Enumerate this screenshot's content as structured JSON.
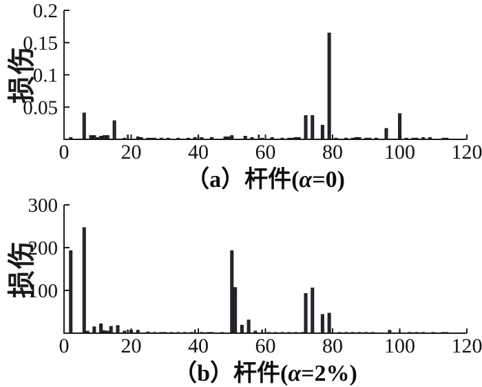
{
  "figure": {
    "background": "#ffffff",
    "text_color": "#111111"
  },
  "chart_data": [
    {
      "id": "a",
      "type": "bar",
      "caption_text": "（a）杆件(α=0)",
      "caption": {
        "pre": "（a）杆件(",
        "alpha": "α",
        "post": "=0)"
      },
      "ylabel": "损伤",
      "xlabel": "",
      "xlim": [
        0,
        120
      ],
      "ylim": [
        0,
        0.2
      ],
      "grid": false,
      "legend": "none",
      "bar_color": "#26262d",
      "bar_stroke": "#101014",
      "axis_color": "#1a1a1a",
      "xticks": [
        {
          "v": 0,
          "label": "0"
        },
        {
          "v": 20,
          "label": "20"
        },
        {
          "v": 40,
          "label": "40"
        },
        {
          "v": 60,
          "label": "60"
        },
        {
          "v": 80,
          "label": "80"
        },
        {
          "v": 100,
          "label": "100"
        },
        {
          "v": 120,
          "label": "120"
        }
      ],
      "yticks": [
        {
          "v": 0.05,
          "label": "0.05"
        },
        {
          "v": 0.1,
          "label": "0.1"
        },
        {
          "v": 0.15,
          "label": "0.15"
        },
        {
          "v": 0.2,
          "label": "0.2"
        }
      ],
      "bars": [
        [
          2,
          0.003
        ],
        [
          6,
          0.041
        ],
        [
          8,
          0.006
        ],
        [
          9,
          0.006
        ],
        [
          10,
          0.003
        ],
        [
          11,
          0.005
        ],
        [
          12,
          0.006
        ],
        [
          13,
          0.006
        ],
        [
          15,
          0.029
        ],
        [
          18,
          0.002
        ],
        [
          19,
          0.007,
          1
        ],
        [
          22,
          0.004
        ],
        [
          23,
          0.003
        ],
        [
          25,
          0.002
        ],
        [
          26,
          0.002
        ],
        [
          27,
          0.002
        ],
        [
          29,
          0.002
        ],
        [
          31,
          0.002
        ],
        [
          34,
          0.002
        ],
        [
          37,
          0.002
        ],
        [
          39,
          0.003
        ],
        [
          40,
          0.005,
          1
        ],
        [
          41,
          0.003
        ],
        [
          44,
          0.003
        ],
        [
          48,
          0.004
        ],
        [
          49,
          0.004
        ],
        [
          50,
          0.006
        ],
        [
          54,
          0.005
        ],
        [
          56,
          0.003
        ],
        [
          58,
          0.007,
          1
        ],
        [
          59,
          0.002
        ],
        [
          62,
          0.003
        ],
        [
          65,
          0.002
        ],
        [
          67,
          0.002
        ],
        [
          68,
          0.002
        ],
        [
          69,
          0.003
        ],
        [
          70,
          0.003
        ],
        [
          72,
          0.037
        ],
        [
          74,
          0.037
        ],
        [
          77,
          0.022
        ],
        [
          79,
          0.165
        ],
        [
          81,
          0.002
        ],
        [
          84,
          0.002
        ],
        [
          86,
          0.002
        ],
        [
          87,
          0.003
        ],
        [
          88,
          0.003
        ],
        [
          90,
          0.002
        ],
        [
          91,
          0.002
        ],
        [
          93,
          0.002
        ],
        [
          96,
          0.017
        ],
        [
          100,
          0.04
        ],
        [
          102,
          0.002
        ],
        [
          104,
          0.002
        ],
        [
          105,
          0.002
        ],
        [
          107,
          0.003
        ],
        [
          109,
          0.003
        ],
        [
          113,
          0.002
        ],
        [
          114,
          0.002
        ]
      ]
    },
    {
      "id": "b",
      "type": "bar",
      "caption_text": "（b）杆件(α=2%)",
      "caption": {
        "pre": "（b）杆件(",
        "alpha": "α",
        "post": "=2%)"
      },
      "ylabel": "损伤",
      "xlabel": "",
      "xlim": [
        0,
        120
      ],
      "ylim": [
        0,
        300
      ],
      "grid": false,
      "legend": "none",
      "bar_color": "#26262d",
      "bar_stroke": "#101014",
      "axis_color": "#1a1a1a",
      "xticks": [
        {
          "v": 0,
          "label": "0"
        },
        {
          "v": 20,
          "label": "20"
        },
        {
          "v": 40,
          "label": "40"
        },
        {
          "v": 60,
          "label": "60"
        },
        {
          "v": 80,
          "label": "80"
        },
        {
          "v": 100,
          "label": "100"
        },
        {
          "v": 120,
          "label": "120"
        }
      ],
      "yticks": [
        {
          "v": 100,
          "label": "100"
        },
        {
          "v": 200,
          "label": "200"
        },
        {
          "v": 300,
          "label": "300"
        }
      ],
      "bars": [
        [
          2,
          193
        ],
        [
          6,
          247
        ],
        [
          7,
          5
        ],
        [
          9,
          15
        ],
        [
          11,
          22
        ],
        [
          12,
          6
        ],
        [
          13,
          5
        ],
        [
          14,
          16
        ],
        [
          16,
          18
        ],
        [
          18,
          5
        ],
        [
          19,
          8,
          1
        ],
        [
          20,
          7
        ],
        [
          22,
          7
        ],
        [
          25,
          3
        ],
        [
          27,
          2
        ],
        [
          29,
          2
        ],
        [
          30,
          2
        ],
        [
          32,
          2
        ],
        [
          34,
          2
        ],
        [
          36,
          2
        ],
        [
          38,
          2
        ],
        [
          39,
          8,
          1
        ],
        [
          41,
          2
        ],
        [
          43,
          2
        ],
        [
          44,
          2
        ],
        [
          47,
          2
        ],
        [
          50,
          193
        ],
        [
          51,
          107
        ],
        [
          53,
          19
        ],
        [
          55,
          31
        ],
        [
          57,
          5
        ],
        [
          59,
          8,
          1
        ],
        [
          61,
          2
        ],
        [
          63,
          2
        ],
        [
          65,
          2
        ],
        [
          67,
          2
        ],
        [
          69,
          2
        ],
        [
          71,
          2
        ],
        [
          72,
          93
        ],
        [
          74,
          106
        ],
        [
          77,
          44
        ],
        [
          79,
          47
        ],
        [
          82,
          2
        ],
        [
          84,
          2
        ],
        [
          86,
          2
        ],
        [
          88,
          2
        ],
        [
          90,
          2
        ],
        [
          92,
          2
        ],
        [
          97,
          7
        ],
        [
          100,
          6,
          1
        ],
        [
          103,
          2
        ],
        [
          105,
          2
        ],
        [
          107,
          2
        ],
        [
          110,
          2
        ],
        [
          113,
          2
        ],
        [
          114,
          2
        ]
      ]
    }
  ]
}
